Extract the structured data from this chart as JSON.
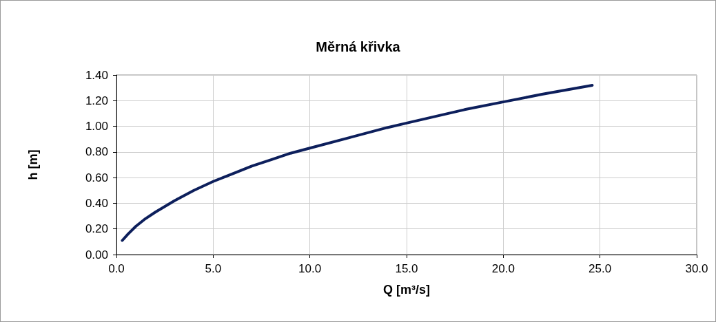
{
  "chart_data": {
    "type": "line",
    "title": "Měrná křivka",
    "xlabel": "Q [m³/s]",
    "ylabel": "h [m]",
    "x": [
      0.3,
      0.6,
      1,
      1.5,
      2,
      3,
      4,
      5,
      6,
      7,
      8,
      9,
      10,
      12,
      14,
      15,
      16,
      18,
      20,
      22,
      24.6
    ],
    "series": [
      {
        "color": "#0d1f5c",
        "values": [
          0.11,
          0.16,
          0.22,
          0.28,
          0.33,
          0.42,
          0.5,
          0.57,
          0.63,
          0.69,
          0.74,
          0.79,
          0.83,
          0.91,
          0.99,
          1.025,
          1.06,
          1.13,
          1.19,
          1.25,
          1.32
        ]
      }
    ],
    "xlim": [
      0,
      30
    ],
    "xticks": [
      {
        "value": 0,
        "label": "0.0"
      },
      {
        "value": 5,
        "label": "5.0"
      },
      {
        "value": 10,
        "label": "10.0"
      },
      {
        "value": 15,
        "label": "15.0"
      },
      {
        "value": 20,
        "label": "20.0"
      },
      {
        "value": 25,
        "label": "25.0"
      },
      {
        "value": 30,
        "label": "30.0"
      }
    ],
    "ylim": [
      0,
      1.4
    ],
    "yticks": [
      {
        "value": 0,
        "label": "0.00"
      },
      {
        "value": 0.2,
        "label": "0.20"
      },
      {
        "value": 0.4,
        "label": "0.40"
      },
      {
        "value": 0.6,
        "label": "0.60"
      },
      {
        "value": 0.8,
        "label": "0.80"
      },
      {
        "value": 1,
        "label": "1.00"
      },
      {
        "value": 1.2,
        "label": "1.20"
      },
      {
        "value": 1.4,
        "label": "1.40"
      }
    ],
    "grid": true,
    "marker": "none",
    "line_style": "solid"
  }
}
